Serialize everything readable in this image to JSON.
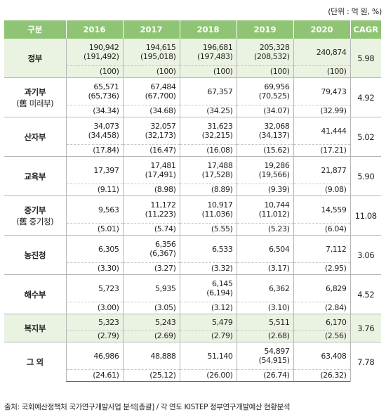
{
  "unit_note": "(단위 : 억 원, %)",
  "headers": [
    "구분",
    "2016",
    "2017",
    "2018",
    "2019",
    "2020",
    "CAGR"
  ],
  "rows": [
    {
      "label": [
        "정부"
      ],
      "highlight": true,
      "values": [
        [
          "190,942",
          "(191,492)"
        ],
        [
          "194,615",
          "(195,018)"
        ],
        [
          "196,681",
          "(197,483)"
        ],
        [
          "205,328",
          "(208,532)"
        ],
        [
          "240,874"
        ]
      ],
      "shares": [
        "(100)",
        "(100)",
        "(100)",
        "(100)",
        "(100)"
      ],
      "cagr": "5.98"
    },
    {
      "label": [
        "과기부",
        "(舊 미래부)"
      ],
      "highlight": false,
      "values": [
        [
          "65,571",
          "(65,736)"
        ],
        [
          "67,484",
          "(67,700)"
        ],
        [
          "67,357"
        ],
        [
          "69,956",
          "(70,525)"
        ],
        [
          "79,473"
        ]
      ],
      "shares": [
        "(34.34)",
        "(34.68)",
        "(34.25)",
        "(34.07)",
        "(32.99)"
      ],
      "cagr": "4.92"
    },
    {
      "label": [
        "산자부"
      ],
      "highlight": false,
      "values": [
        [
          "34,073",
          "(34,458)"
        ],
        [
          "32,057",
          "(32,173)"
        ],
        [
          "31,623",
          "(32,215)"
        ],
        [
          "32,068",
          "(34,137)"
        ],
        [
          "41,444"
        ]
      ],
      "shares": [
        "(17.84)",
        "(16.47)",
        "(16.08)",
        "(15.62)",
        "(17.21)"
      ],
      "cagr": "5.02"
    },
    {
      "label": [
        "교육부"
      ],
      "highlight": false,
      "values": [
        [
          "17,397"
        ],
        [
          "17,481",
          "(17,491)"
        ],
        [
          "17,488",
          "(17,528)"
        ],
        [
          "19,286",
          "(19,566)"
        ],
        [
          "21,877"
        ]
      ],
      "shares": [
        "(9.11)",
        "(8.98)",
        "(8.89)",
        "(9.39)",
        "(9.08)"
      ],
      "cagr": "5.90"
    },
    {
      "label": [
        "중기부",
        "(舊 중기청)"
      ],
      "highlight": false,
      "values": [
        [
          "9,563"
        ],
        [
          "11,172",
          "(11,223)"
        ],
        [
          "10,917",
          "(11,036)"
        ],
        [
          "10,744",
          "(11,012)"
        ],
        [
          "14,559"
        ]
      ],
      "shares": [
        "(5.01)",
        "(5.74)",
        "(5.55)",
        "(5.23)",
        "(6.04)"
      ],
      "cagr": "11.08"
    },
    {
      "label": [
        "농진청"
      ],
      "highlight": false,
      "values": [
        [
          "6,305"
        ],
        [
          "6,356",
          "(6,367)"
        ],
        [
          "6,533"
        ],
        [
          "6,504"
        ],
        [
          "7,112"
        ]
      ],
      "shares": [
        "(3.30)",
        "(3.27)",
        "(3.32)",
        "(3.17)",
        "(2.95)"
      ],
      "cagr": "3.06"
    },
    {
      "label": [
        "해수부"
      ],
      "highlight": false,
      "values": [
        [
          "5,723"
        ],
        [
          "5,935"
        ],
        [
          "6,145",
          "(6,194)"
        ],
        [
          "6,362"
        ],
        [
          "6,829"
        ]
      ],
      "shares": [
        "(3.00)",
        "(3.05)",
        "(3.12)",
        "(3.10)",
        "(2.84)"
      ],
      "cagr": "4.52"
    },
    {
      "label": [
        "복지부"
      ],
      "highlight": true,
      "compact": true,
      "values": [
        [
          "5,323"
        ],
        [
          "5,243"
        ],
        [
          "5,479"
        ],
        [
          "5,511"
        ],
        [
          "6,170"
        ]
      ],
      "shares": [
        "(2.79)",
        "(2.69)",
        "(2.79)",
        "(2.68)",
        "(2.56)"
      ],
      "cagr": "3.76"
    },
    {
      "label": [
        "그 외"
      ],
      "highlight": false,
      "values": [
        [
          "46,986"
        ],
        [
          "48,888"
        ],
        [
          "51,140"
        ],
        [
          "54,897",
          "(54,915)"
        ],
        [
          "63,408"
        ]
      ],
      "shares": [
        "(24.61)",
        "(25.12)",
        "(26.00)",
        "(26.74)",
        "(26.32)"
      ],
      "cagr": "7.78"
    }
  ],
  "source": "출처: 국회예산정책처 국가연구개발사업 분석[총괄] / 각 연도 KISTEP 정부연구개발예산 현황분석"
}
